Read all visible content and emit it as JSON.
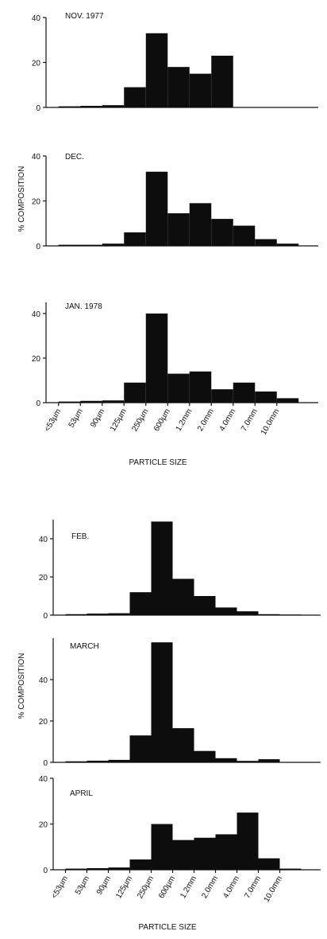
{
  "chart_data": [
    {
      "type": "bar",
      "title": "NOV. 1977",
      "categories": [
        "<53µm",
        "53µm",
        "90µm",
        "125µm",
        "250µm",
        "600µm",
        "1.2mm",
        "2.0mm",
        "4.0mm",
        "7.0mm",
        "10.0mm"
      ],
      "values": [
        0.5,
        0.7,
        1,
        9,
        33,
        18,
        15,
        23,
        0,
        0,
        0
      ],
      "ylim": [
        0,
        40
      ],
      "yticks": [
        0,
        20,
        40
      ]
    },
    {
      "type": "bar",
      "title": "DEC.",
      "categories": [
        "<53µm",
        "53µm",
        "90µm",
        "125µm",
        "250µm",
        "600µm",
        "1.2mm",
        "2.0mm",
        "4.0mm",
        "7.0mm",
        "10.0mm"
      ],
      "values": [
        0.5,
        0.5,
        1,
        6,
        33,
        14.5,
        19,
        12,
        9,
        3,
        1
      ],
      "ylim": [
        0,
        40
      ],
      "yticks": [
        0,
        20,
        40
      ]
    },
    {
      "type": "bar",
      "title": "JAN. 1978",
      "categories": [
        "<53µm",
        "53µm",
        "90µm",
        "125µm",
        "250µm",
        "600µm",
        "1.2mm",
        "2.0mm",
        "4.0mm",
        "7.0mm",
        "10.0mm"
      ],
      "values": [
        0.5,
        0.8,
        1,
        9,
        40,
        13,
        14,
        6,
        9,
        5,
        2
      ],
      "ylim": [
        0,
        45
      ],
      "yticks": [
        0,
        20,
        40
      ]
    },
    {
      "type": "bar",
      "title": "FEB.",
      "categories": [
        "<53µm",
        "53µm",
        "90µm",
        "125µm",
        "250µm",
        "600µm",
        "1.2mm",
        "2.0mm",
        "4.0mm",
        "7.0mm",
        "10.0mm"
      ],
      "values": [
        0.5,
        0.8,
        1,
        12,
        49,
        19,
        10,
        4,
        2,
        0.5,
        0.3
      ],
      "ylim": [
        0,
        50
      ],
      "yticks": [
        0,
        20,
        40
      ]
    },
    {
      "type": "bar",
      "title": "MARCH",
      "categories": [
        "<53µm",
        "53µm",
        "90µm",
        "125µm",
        "250µm",
        "600µm",
        "1.2mm",
        "2.0mm",
        "4.0mm",
        "7.0mm",
        "10.0mm"
      ],
      "values": [
        0.5,
        0.8,
        1.2,
        13,
        58,
        16.5,
        5.5,
        2,
        0.7,
        1.5,
        0
      ],
      "ylim": [
        0,
        60
      ],
      "yticks": [
        0,
        20,
        40
      ]
    },
    {
      "type": "bar",
      "title": "APRIL",
      "categories": [
        "<53µm",
        "53µm",
        "90µm",
        "125µm",
        "250µm",
        "600µm",
        "1.2mm",
        "2.0mm",
        "4.0mm",
        "7.0mm",
        "10.0mm"
      ],
      "values": [
        0.5,
        0.7,
        1,
        4.5,
        20,
        13,
        14,
        15.5,
        25,
        5,
        0.5
      ],
      "ylim": [
        0,
        40
      ],
      "yticks": [
        0,
        20,
        40
      ]
    }
  ],
  "labels": {
    "ylabel_top": "% COMPOSITION",
    "ylabel_bottom": "% COMPOSITION",
    "xlabel_top": "PARTICLE SIZE",
    "xlabel_bottom": "PARTICLE SIZE"
  }
}
